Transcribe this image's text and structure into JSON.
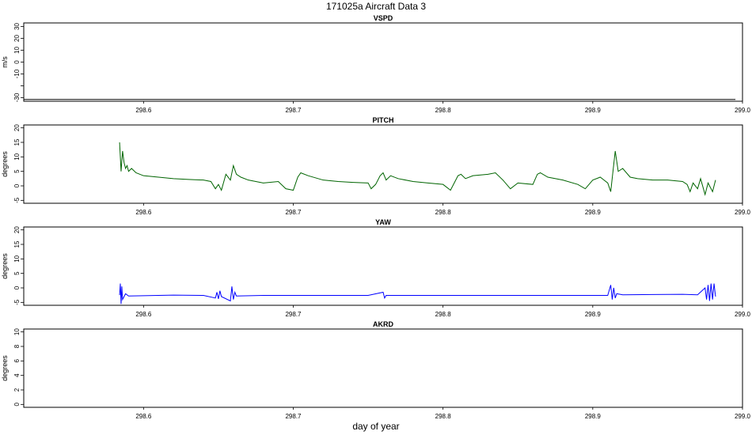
{
  "figure": {
    "title": "171025a   Aircraft Data 3",
    "xlabel": "day of year"
  },
  "chart_data": [
    {
      "type": "line",
      "title": "VSPD",
      "ylabel": "m/s",
      "xlim": [
        298.52,
        299.0
      ],
      "ylim": [
        -33,
        33
      ],
      "y_ticks": [
        -30,
        -20,
        -10,
        0,
        10,
        20,
        30
      ],
      "y_tick_labels": [
        "-30",
        "",
        "-10",
        "0",
        "10",
        "20",
        "30"
      ],
      "x_ticks": [
        298.6,
        298.7,
        298.8,
        298.9,
        299.0
      ],
      "x_tick_labels": [
        "298.6",
        "298.7",
        "298.8",
        "298.9",
        "299.0"
      ],
      "color": "#000000",
      "series": [
        {
          "x": [
            298.5,
            298.9953
          ],
          "y": [
            -31.5,
            -31.5
          ]
        }
      ]
    },
    {
      "type": "line",
      "title": "PITCH",
      "ylabel": "degrees",
      "xlim": [
        298.52,
        299.0
      ],
      "ylim": [
        -6,
        21
      ],
      "y_ticks": [
        -5,
        0,
        5,
        10,
        15,
        20
      ],
      "y_tick_labels": [
        "-5",
        "0",
        "5",
        "10",
        "15",
        "20"
      ],
      "x_ticks": [
        298.6,
        298.7,
        298.8,
        298.9,
        299.0
      ],
      "x_tick_labels": [
        "298.6",
        "298.7",
        "298.8",
        "298.9",
        "299.0"
      ],
      "color": "#006400",
      "series": [
        {
          "x": [
            298.584,
            298.585,
            298.586,
            298.587,
            298.588,
            298.589,
            298.59,
            298.592,
            298.595,
            298.6,
            298.61,
            298.62,
            298.63,
            298.64,
            298.645,
            298.648,
            298.65,
            298.652,
            298.655,
            298.658,
            298.66,
            298.662,
            298.665,
            298.67,
            298.68,
            298.69,
            298.695,
            298.7,
            298.703,
            298.705,
            298.71,
            298.72,
            298.73,
            298.74,
            298.75,
            298.752,
            298.755,
            298.758,
            298.76,
            298.762,
            298.765,
            298.77,
            298.78,
            298.79,
            298.8,
            298.805,
            298.81,
            298.812,
            298.815,
            298.82,
            298.83,
            298.835,
            298.84,
            298.845,
            298.85,
            298.86,
            298.863,
            298.865,
            298.87,
            298.88,
            298.89,
            298.895,
            298.9,
            298.905,
            298.91,
            298.912,
            298.915,
            298.917,
            298.92,
            298.925,
            298.93,
            298.94,
            298.95,
            298.96,
            298.963,
            298.965,
            298.967,
            298.97,
            298.972,
            298.975,
            298.977,
            298.98,
            298.982
          ],
          "y": [
            15,
            5,
            12,
            8,
            6,
            7,
            5,
            6,
            4.5,
            3.5,
            3,
            2.5,
            2.2,
            2,
            1.5,
            -1,
            0.5,
            -1.5,
            4,
            2,
            7,
            4,
            3,
            2,
            1,
            1.5,
            -1,
            -1.5,
            3,
            4.5,
            3.5,
            2,
            1.5,
            1.2,
            1,
            -1,
            0.5,
            3.5,
            4.5,
            2,
            3.5,
            2.5,
            1.5,
            1,
            0.5,
            -1.5,
            3.5,
            4,
            2.5,
            3.5,
            4,
            4.5,
            2,
            -1,
            1,
            0.5,
            4,
            4.5,
            3,
            2,
            0.5,
            -1,
            2,
            3,
            1,
            -2,
            12,
            5,
            6,
            3,
            2.5,
            2,
            2,
            1.5,
            0.5,
            -2,
            1,
            -1,
            2.5,
            -3,
            1,
            -2,
            2
          ]
        }
      ]
    },
    {
      "type": "line",
      "title": "YAW",
      "ylabel": "degrees",
      "xlim": [
        298.52,
        299.0
      ],
      "ylim": [
        -6,
        21
      ],
      "y_ticks": [
        -5,
        0,
        5,
        10,
        15,
        20
      ],
      "y_tick_labels": [
        "-5",
        "0",
        "5",
        "10",
        "15",
        "20"
      ],
      "x_ticks": [
        298.6,
        298.7,
        298.8,
        298.9,
        299.0
      ],
      "x_tick_labels": [
        "298.6",
        "298.7",
        "298.8",
        "298.9",
        "299.0"
      ],
      "color": "#0000ff",
      "series": [
        {
          "x": [
            298.584,
            298.5845,
            298.585,
            298.5855,
            298.586,
            298.587,
            298.588,
            298.59,
            298.6,
            298.62,
            298.64,
            298.648,
            298.649,
            298.65,
            298.651,
            298.652,
            298.658,
            298.659,
            298.66,
            298.661,
            298.662,
            298.68,
            298.7,
            298.75,
            298.76,
            298.761,
            298.762,
            298.78,
            298.8,
            298.85,
            298.9,
            298.91,
            298.912,
            298.913,
            298.914,
            298.915,
            298.916,
            298.92,
            298.94,
            298.96,
            298.97,
            298.975,
            298.976,
            298.977,
            298.978,
            298.979,
            298.98,
            298.981,
            298.982
          ],
          "y": [
            -2.5,
            1.5,
            -5.5,
            0.5,
            -4,
            -3,
            -2,
            -2.8,
            -2.7,
            -2.5,
            -2.6,
            -3.5,
            -1.5,
            -3.8,
            -1,
            -3,
            -4.5,
            0.5,
            -4,
            -1.5,
            -2.8,
            -2.6,
            -2.6,
            -2.6,
            -1.5,
            -3.5,
            -2.6,
            -2.6,
            -2.6,
            -2.6,
            -2.6,
            -2.6,
            1,
            -4,
            0,
            -3.5,
            -2,
            -2.4,
            -2.3,
            -2.2,
            -2.4,
            0,
            -4,
            1,
            -4.5,
            1.5,
            -4,
            1.5,
            -3
          ]
        }
      ]
    },
    {
      "type": "line",
      "title": "AKRD",
      "ylabel": "degrees",
      "xlim": [
        298.52,
        299.0
      ],
      "ylim": [
        -0.4,
        10.4
      ],
      "y_ticks": [
        0,
        2,
        4,
        6,
        8,
        10
      ],
      "y_tick_labels": [
        "0",
        "2",
        "4",
        "6",
        "8",
        "10"
      ],
      "x_ticks": [
        298.6,
        298.7,
        298.8,
        298.9,
        299.0
      ],
      "x_tick_labels": [
        "298.6",
        "298.7",
        "298.8",
        "298.9",
        "299.0"
      ],
      "color": "#000000",
      "series": [
        {
          "x": [
            298.5,
            298.9953
          ],
          "y": [
            -0.4,
            -0.4
          ]
        }
      ]
    }
  ]
}
